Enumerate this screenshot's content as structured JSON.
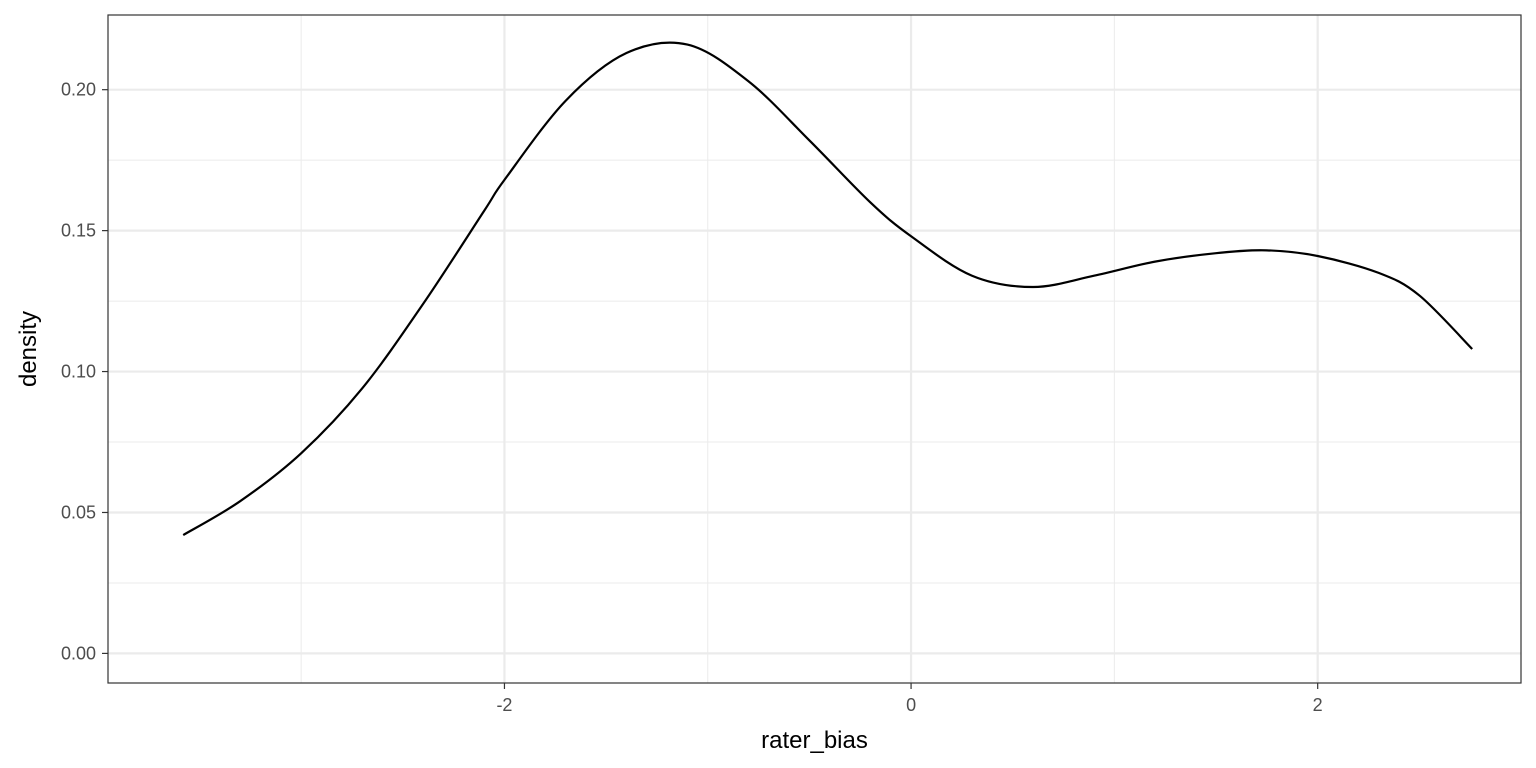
{
  "chart_data": {
    "type": "line",
    "title": "",
    "xlabel": "rater_bias",
    "ylabel": "density",
    "xlim": [
      -3.95,
      3.0
    ],
    "ylim": [
      -0.0105,
      0.2265
    ],
    "x_ticks": [
      -2,
      0,
      2
    ],
    "x_tick_labels": [
      "-2",
      "0",
      "2"
    ],
    "y_ticks": [
      0.0,
      0.05,
      0.1,
      0.15,
      0.2
    ],
    "y_tick_labels": [
      "0.00",
      "0.05",
      "0.10",
      "0.15",
      "0.20"
    ],
    "x_minor_ticks": [
      -3,
      -1,
      1,
      3
    ],
    "y_minor_ticks": [
      0.025,
      0.075,
      0.125,
      0.175
    ],
    "grid": true,
    "legend": "none",
    "colors": {
      "line": "#000000",
      "grid": "#ebebeb",
      "panel_border": "#333333",
      "tick_label": "#4d4d4d"
    },
    "series": [
      {
        "x": [
          -3.58,
          -3.3,
          -3.0,
          -2.7,
          -2.4,
          -2.1,
          -2.0,
          -1.7,
          -1.4,
          -1.1,
          -0.8,
          -0.5,
          -0.2,
          0.0,
          0.3,
          0.6,
          0.9,
          1.2,
          1.5,
          1.75,
          2.0,
          2.3,
          2.5,
          2.76
        ],
        "y": [
          0.042,
          0.054,
          0.071,
          0.094,
          0.124,
          0.157,
          0.168,
          0.196,
          0.213,
          0.216,
          0.203,
          0.182,
          0.16,
          0.148,
          0.134,
          0.13,
          0.134,
          0.139,
          0.142,
          0.143,
          0.141,
          0.135,
          0.127,
          0.108
        ]
      }
    ]
  }
}
